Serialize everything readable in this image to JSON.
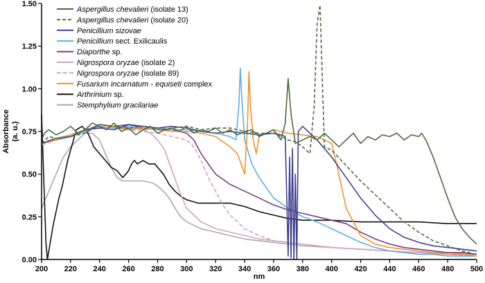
{
  "chart_data": {
    "type": "line",
    "title": "",
    "xlabel": "nm",
    "ylabel_line1": "Absorbance",
    "ylabel_line2": "(a. u.)",
    "xlim": [
      200,
      500
    ],
    "ylim": [
      0,
      1.5
    ],
    "x_ticks": [
      200,
      220,
      240,
      260,
      280,
      300,
      320,
      340,
      360,
      380,
      400,
      420,
      440,
      460,
      480,
      500
    ],
    "x_tick_labels": [
      "200",
      "220",
      "240",
      "260",
      "280",
      "300",
      "320",
      "340",
      "360",
      "380",
      "400",
      "420",
      "440",
      "460",
      "480",
      "500"
    ],
    "y_ticks": [
      0,
      0.25,
      0.5,
      0.75,
      1.0,
      1.25,
      1.5
    ],
    "y_tick_labels": [
      "0.00",
      "0.25",
      "0.50",
      "0.75",
      "1.00",
      "1.25",
      "1.50"
    ],
    "legend_position": "top-left",
    "series": [
      {
        "name_italic": "Aspergillus chevalieri",
        "name_rest": " (isolate 13)",
        "color": "#4a6b3a",
        "dash": "",
        "x": [
          200,
          202,
          205,
          210,
          215,
          220,
          225,
          230,
          235,
          240,
          245,
          250,
          255,
          260,
          265,
          270,
          275,
          280,
          285,
          290,
          295,
          300,
          305,
          310,
          315,
          320,
          325,
          330,
          335,
          340,
          345,
          350,
          355,
          360,
          365,
          368,
          370,
          372,
          375,
          380,
          385,
          390,
          395,
          400,
          405,
          410,
          415,
          420,
          425,
          430,
          435,
          440,
          445,
          450,
          455,
          460,
          462,
          465,
          470,
          475,
          480,
          485,
          490,
          495,
          500
        ],
        "y": [
          0.7,
          0.74,
          0.76,
          0.73,
          0.75,
          0.78,
          0.74,
          0.76,
          0.8,
          0.78,
          0.76,
          0.8,
          0.75,
          0.77,
          0.73,
          0.76,
          0.78,
          0.74,
          0.76,
          0.77,
          0.75,
          0.78,
          0.74,
          0.76,
          0.75,
          0.77,
          0.74,
          0.76,
          0.73,
          0.75,
          0.76,
          0.72,
          0.74,
          0.76,
          0.7,
          0.8,
          1.06,
          0.85,
          0.68,
          0.7,
          0.72,
          0.7,
          0.74,
          0.7,
          0.66,
          0.7,
          0.74,
          0.68,
          0.72,
          0.7,
          0.73,
          0.72,
          0.74,
          0.7,
          0.73,
          0.72,
          0.74,
          0.7,
          0.6,
          0.48,
          0.36,
          0.25,
          0.18,
          0.13,
          0.09
        ]
      },
      {
        "name_italic": "Aspergillus chevalieri",
        "name_rest": " (isolate 20)",
        "color": "#4a6b3a",
        "dash": "5,3",
        "x": [
          200,
          205,
          210,
          220,
          230,
          240,
          250,
          260,
          270,
          280,
          290,
          300,
          310,
          320,
          330,
          340,
          350,
          360,
          365,
          370,
          375,
          380,
          385,
          388,
          390,
          392,
          395,
          400,
          410,
          420,
          430,
          440,
          450,
          460,
          470,
          480,
          490,
          500
        ],
        "y": [
          0.68,
          0.72,
          0.71,
          0.72,
          0.74,
          0.79,
          0.78,
          0.77,
          0.78,
          0.76,
          0.77,
          0.78,
          0.76,
          0.77,
          0.77,
          0.75,
          0.74,
          0.74,
          0.72,
          0.7,
          0.69,
          0.66,
          0.62,
          0.9,
          1.38,
          1.49,
          0.66,
          0.64,
          0.55,
          0.46,
          0.38,
          0.3,
          0.22,
          0.16,
          0.11,
          0.08,
          0.05,
          0.03
        ]
      },
      {
        "name_italic": "Penicillium sizovae",
        "name_rest": "",
        "color": "#3f3f8f",
        "dash": "",
        "x": [
          200,
          210,
          220,
          230,
          240,
          250,
          260,
          270,
          280,
          290,
          300,
          310,
          320,
          330,
          340,
          350,
          360,
          365,
          368,
          370,
          371,
          372,
          373,
          374,
          375,
          376,
          377,
          380,
          390,
          400,
          410,
          420,
          430,
          440,
          450,
          460,
          470,
          480,
          490,
          500
        ],
        "y": [
          0.68,
          0.71,
          0.72,
          0.76,
          0.77,
          0.76,
          0.79,
          0.78,
          0.77,
          0.78,
          0.77,
          0.75,
          0.74,
          0.75,
          0.74,
          0.73,
          0.74,
          0.73,
          0.72,
          0.02,
          0.6,
          0.01,
          0.65,
          0.0,
          0.5,
          0.0,
          0.75,
          0.78,
          0.7,
          0.6,
          0.48,
          0.36,
          0.26,
          0.18,
          0.13,
          0.1,
          0.08,
          0.07,
          0.06,
          0.05
        ]
      },
      {
        "name_italic": "",
        "name_rest": "Penicillium sect. Exilicaulis",
        "name_rest_italic_word": "Penicillium",
        "color": "#5aaee8",
        "dash": "",
        "x": [
          200,
          210,
          220,
          230,
          240,
          250,
          260,
          270,
          280,
          290,
          300,
          310,
          320,
          330,
          334,
          336,
          337,
          338,
          340,
          345,
          350,
          360,
          370,
          380,
          390,
          400,
          410,
          420,
          430,
          440,
          450,
          460,
          470,
          480,
          490,
          500
        ],
        "y": [
          0.68,
          0.7,
          0.72,
          0.75,
          0.78,
          0.77,
          0.78,
          0.76,
          0.77,
          0.76,
          0.76,
          0.75,
          0.74,
          0.72,
          0.7,
          0.9,
          1.12,
          0.95,
          0.7,
          0.56,
          0.48,
          0.36,
          0.3,
          0.25,
          0.22,
          0.18,
          0.14,
          0.1,
          0.07,
          0.05,
          0.04,
          0.03,
          0.03,
          0.02,
          0.02,
          0.02
        ]
      },
      {
        "name_italic": "Diaporthe",
        "name_rest": " sp.",
        "color": "#7b3a7e",
        "dash": "",
        "x": [
          200,
          210,
          220,
          230,
          240,
          250,
          260,
          270,
          280,
          290,
          300,
          305,
          310,
          315,
          320,
          330,
          340,
          350,
          360,
          370,
          380,
          390,
          400,
          410,
          420,
          430,
          440,
          450,
          460,
          470,
          480,
          490,
          500
        ],
        "y": [
          0.68,
          0.7,
          0.72,
          0.75,
          0.79,
          0.78,
          0.79,
          0.77,
          0.76,
          0.76,
          0.74,
          0.7,
          0.62,
          0.56,
          0.5,
          0.44,
          0.4,
          0.36,
          0.32,
          0.29,
          0.27,
          0.25,
          0.23,
          0.21,
          0.16,
          0.12,
          0.09,
          0.07,
          0.06,
          0.05,
          0.04,
          0.04,
          0.03
        ]
      },
      {
        "name_italic": "Nigrospora oryzae",
        "name_rest": " (isolate 2)",
        "color": "#d4a0c4",
        "dash": "",
        "x": [
          200,
          210,
          220,
          230,
          240,
          250,
          260,
          270,
          275,
          280,
          285,
          290,
          295,
          300,
          310,
          320,
          330,
          340,
          350,
          360,
          380,
          400,
          420,
          440,
          460,
          480,
          500
        ],
        "y": [
          0.68,
          0.71,
          0.73,
          0.76,
          0.79,
          0.78,
          0.77,
          0.76,
          0.74,
          0.7,
          0.64,
          0.52,
          0.4,
          0.3,
          0.22,
          0.18,
          0.16,
          0.14,
          0.12,
          0.11,
          0.09,
          0.07,
          0.06,
          0.05,
          0.04,
          0.03,
          0.03
        ]
      },
      {
        "name_italic": "Nigrospora oryzae",
        "name_rest": " (isolate 89)",
        "color": "#d4a0c4",
        "dash": "6,3",
        "x": [
          200,
          210,
          220,
          230,
          240,
          250,
          260,
          270,
          280,
          290,
          300,
          305,
          310,
          315,
          320,
          325,
          330,
          340,
          350,
          360,
          380,
          400,
          420,
          440,
          460,
          480,
          500
        ],
        "y": [
          0.67,
          0.7,
          0.72,
          0.75,
          0.78,
          0.77,
          0.76,
          0.75,
          0.74,
          0.72,
          0.7,
          0.66,
          0.58,
          0.48,
          0.4,
          0.32,
          0.26,
          0.18,
          0.14,
          0.11,
          0.09,
          0.07,
          0.06,
          0.05,
          0.04,
          0.03,
          0.02
        ]
      },
      {
        "name_italic": "Fusarium incarnatum - equiseti",
        "name_rest": " complex",
        "color": "#f0922a",
        "dash": "",
        "x": [
          200,
          210,
          220,
          230,
          240,
          250,
          260,
          270,
          280,
          290,
          300,
          310,
          320,
          330,
          335,
          338,
          340,
          342,
          343,
          344,
          346,
          348,
          350,
          360,
          370,
          380,
          390,
          400,
          405,
          410,
          420,
          430,
          440,
          450,
          460,
          470,
          480,
          490,
          500
        ],
        "y": [
          0.68,
          0.7,
          0.73,
          0.76,
          0.77,
          0.78,
          0.76,
          0.77,
          0.76,
          0.75,
          0.75,
          0.74,
          0.72,
          0.66,
          0.62,
          0.55,
          0.5,
          0.8,
          1.1,
          0.9,
          0.7,
          0.62,
          0.72,
          0.76,
          0.74,
          0.73,
          0.72,
          0.68,
          0.5,
          0.3,
          0.14,
          0.09,
          0.07,
          0.06,
          0.05,
          0.04,
          0.03,
          0.03,
          0.02
        ]
      },
      {
        "name_italic": "Arthrinium",
        "name_rest": " sp.",
        "color": "#111111",
        "dash": "",
        "x": [
          200,
          201,
          203,
          204,
          206,
          208,
          210,
          212,
          214,
          216,
          218,
          220,
          224,
          228,
          232,
          236,
          240,
          244,
          248,
          252,
          256,
          258,
          260,
          262,
          264,
          266,
          268,
          270,
          274,
          278,
          280,
          284,
          288,
          292,
          296,
          300,
          304,
          308,
          312,
          316,
          320,
          330,
          340,
          350,
          360,
          370,
          380,
          400,
          420,
          440,
          460,
          480,
          500
        ],
        "y": [
          0.85,
          0.6,
          0.1,
          0.0,
          0.1,
          0.2,
          0.28,
          0.36,
          0.42,
          0.5,
          0.58,
          0.64,
          0.76,
          0.78,
          0.74,
          0.66,
          0.62,
          0.58,
          0.54,
          0.52,
          0.48,
          0.5,
          0.52,
          0.56,
          0.58,
          0.56,
          0.57,
          0.58,
          0.56,
          0.56,
          0.54,
          0.5,
          0.44,
          0.4,
          0.37,
          0.35,
          0.34,
          0.33,
          0.33,
          0.33,
          0.33,
          0.33,
          0.31,
          0.28,
          0.26,
          0.24,
          0.23,
          0.23,
          0.22,
          0.22,
          0.22,
          0.21,
          0.21
        ]
      },
      {
        "name_italic": "Stemphylium gracilariae",
        "name_rest": "",
        "color": "#a9a9a9",
        "dash": "",
        "x": [
          200,
          205,
          210,
          215,
          220,
          225,
          230,
          235,
          240,
          244,
          248,
          252,
          256,
          260,
          264,
          270,
          276,
          280,
          284,
          288,
          292,
          296,
          300,
          305,
          310,
          320,
          330,
          340,
          350,
          360,
          370,
          380,
          400,
          420,
          440,
          460,
          480,
          500
        ],
        "y": [
          0.3,
          0.4,
          0.5,
          0.6,
          0.66,
          0.7,
          0.74,
          0.74,
          0.7,
          0.62,
          0.54,
          0.48,
          0.46,
          0.46,
          0.46,
          0.46,
          0.45,
          0.43,
          0.4,
          0.36,
          0.3,
          0.25,
          0.22,
          0.2,
          0.18,
          0.16,
          0.14,
          0.12,
          0.11,
          0.1,
          0.09,
          0.08,
          0.07,
          0.06,
          0.05,
          0.04,
          0.04,
          0.03
        ]
      }
    ]
  }
}
